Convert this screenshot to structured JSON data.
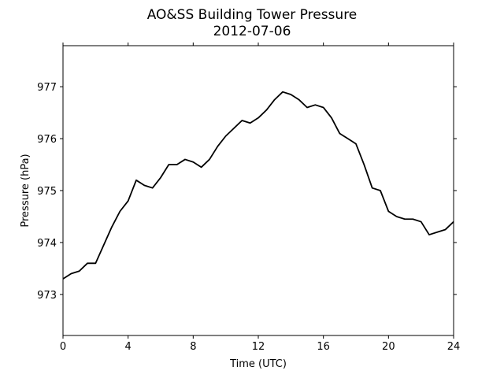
{
  "chart_data": {
    "type": "line",
    "title": "AO&SS Building Tower Pressure",
    "subtitle": "2012-07-06",
    "x_label": "Time (UTC)",
    "y_label": "Pressure (hPa)",
    "x": [
      0,
      0.5,
      1,
      1.5,
      2,
      2.5,
      3,
      3.5,
      4,
      4.5,
      5,
      5.5,
      6,
      6.5,
      7,
      7.5,
      8,
      8.5,
      9,
      9.5,
      10,
      10.5,
      11,
      11.5,
      12,
      12.5,
      13,
      13.5,
      14,
      14.5,
      15,
      15.5,
      16,
      16.5,
      17,
      17.5,
      18,
      18.5,
      19,
      19.5,
      20,
      20.5,
      21,
      21.5,
      22,
      22.5,
      23,
      23.5,
      24
    ],
    "series": [
      {
        "name": "Pressure",
        "color": "#000000",
        "values": [
          973.3,
          973.4,
          973.45,
          973.6,
          973.6,
          973.95,
          974.3,
          974.6,
          974.8,
          975.2,
          975.1,
          975.05,
          975.25,
          975.5,
          975.5,
          975.6,
          975.55,
          975.45,
          975.6,
          975.85,
          976.05,
          976.2,
          976.35,
          976.3,
          976.4,
          976.55,
          976.75,
          976.9,
          976.85,
          976.75,
          976.6,
          976.65,
          976.6,
          976.4,
          976.1,
          976.0,
          975.9,
          975.5,
          975.05,
          975.0,
          974.6,
          974.5,
          974.45,
          974.45,
          974.4,
          974.15,
          974.2,
          974.25,
          974.4
        ]
      }
    ],
    "xlim": [
      0,
      24
    ],
    "xticks": [
      0,
      4,
      8,
      12,
      16,
      20,
      24
    ],
    "ylim": [
      972.21,
      977.79
    ],
    "yticks": [
      973,
      974,
      975,
      976,
      977
    ]
  }
}
